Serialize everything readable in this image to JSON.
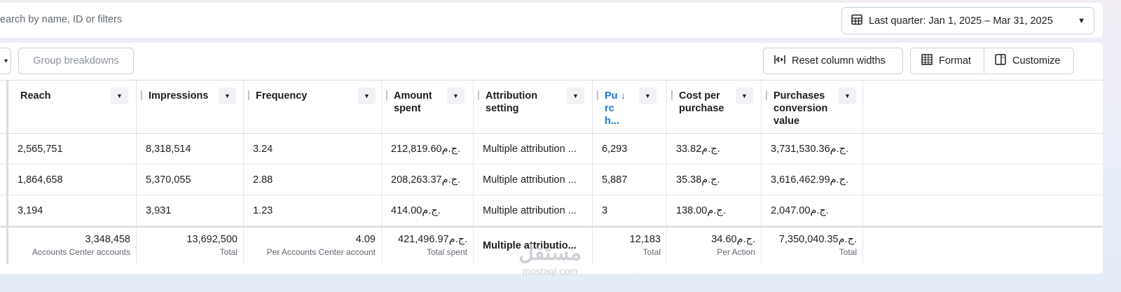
{
  "search": {
    "placeholder": "earch by name, ID or filters"
  },
  "date_range": {
    "label": "Last quarter: Jan 1, 2025 – Mar 31, 2025",
    "icon": "calendar-icon"
  },
  "toolbar": {
    "group_breakdowns": "Group breakdowns",
    "reset_column_widths": "Reset column widths",
    "format": "Format",
    "customize": "Customize"
  },
  "columns": [
    {
      "label": "Reach"
    },
    {
      "label": "Impressions"
    },
    {
      "label": "Frequency"
    },
    {
      "label": "Amount spent"
    },
    {
      "label": "Attribution setting"
    },
    {
      "label": "Purch...",
      "sorted": "descending"
    },
    {
      "label": "Cost per purchase"
    },
    {
      "label": "Purchases conversion value"
    }
  ],
  "rows": [
    [
      "2,565,751",
      "8,318,514",
      "3.24",
      "212,819.60ج.م.",
      "Multiple attribution ...",
      "6,293",
      "33.82ج.م.",
      "3,731,530.36ج.م."
    ],
    [
      "1,864,658",
      "5,370,055",
      "2.88",
      "208,263.37ج.م.",
      "Multiple attribution ...",
      "5,887",
      "35.38ج.م.",
      "3,616,462.99ج.م."
    ],
    [
      "3,194",
      "3,931",
      "1.23",
      "414.00ج.م.",
      "Multiple attribution ...",
      "3",
      "138.00ج.م.",
      "2,047.00ج.م."
    ]
  ],
  "totals": {
    "reach": {
      "value": "3,348,458",
      "label": "Accounts Center accounts"
    },
    "impressions": {
      "value": "13,692,500",
      "label": "Total"
    },
    "frequency": {
      "value": "4.09",
      "label": "Per Accounts Center account"
    },
    "amount_spent": {
      "value": "421,496.97ج.م.",
      "label": "Total spent"
    },
    "attribution": {
      "value": "Multiple attributio..."
    },
    "purchases": {
      "value": "12,183",
      "label": "Total"
    },
    "cost_per_purchase": {
      "value": "34.60ج.م.",
      "label": "Per Action"
    },
    "conversion_value": {
      "value": "7,350,040.35ج.م.",
      "label": "Total"
    }
  },
  "watermark": {
    "arabic": "مستقل",
    "latin": "mostaql.com"
  }
}
